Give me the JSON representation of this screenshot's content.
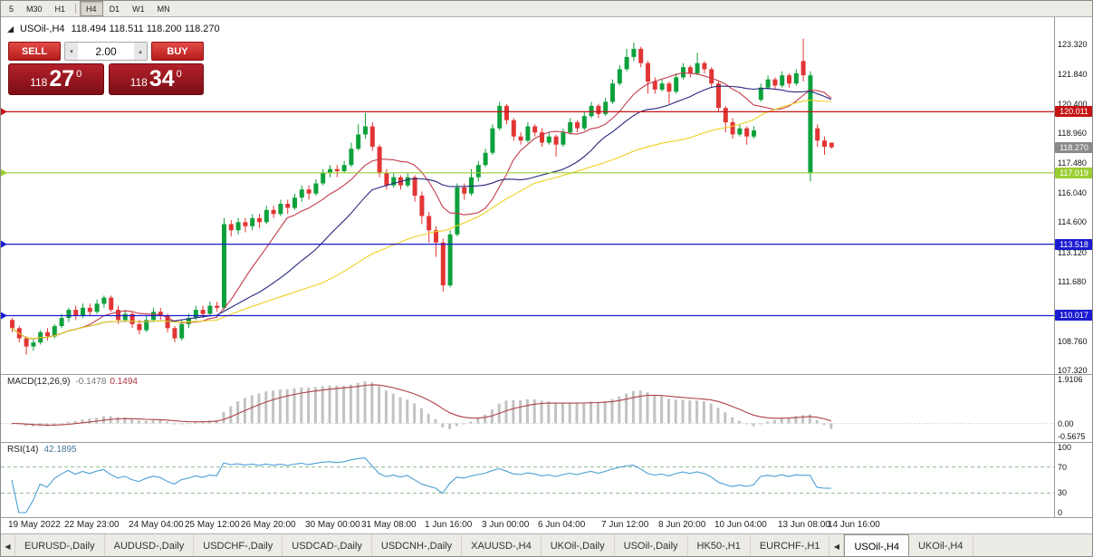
{
  "timeframe_bar": {
    "buttons": [
      "5",
      "M30",
      "H1",
      "H4",
      "D1",
      "W1",
      "MN"
    ],
    "active": "H4",
    "separator_after": "H1"
  },
  "chart": {
    "symbol": "USOil-,H4",
    "ohlc": "118.494 118.511 118.200 118.270"
  },
  "trade_panel": {
    "sell_label": "SELL",
    "buy_label": "BUY",
    "volume": "2.00",
    "sell_price": {
      "small": "118",
      "big": "27",
      "sup": "0"
    },
    "buy_price": {
      "small": "118",
      "big": "34",
      "sup": "0"
    }
  },
  "icons": {
    "tab_nav_left": "◀",
    "volume_down": "▾",
    "volume_up": "▴"
  },
  "price_axis": {
    "ticks": [
      "123.320",
      "121.840",
      "120.400",
      "118.960",
      "117.480",
      "116.040",
      "114.600",
      "113.120",
      "111.680",
      "108.760",
      "107.320"
    ],
    "badges": [
      {
        "text": "120.011",
        "price": 120.011,
        "bg": "#c41414"
      },
      {
        "text": "118.270",
        "price": 118.27,
        "bg": "#8a8a8a"
      },
      {
        "text": "117.019",
        "price": 117.019,
        "bg": "#9acd32"
      },
      {
        "text": "113.518",
        "price": 113.518,
        "bg": "#1a1ad2"
      },
      {
        "text": "110.017",
        "price": 110.017,
        "bg": "#1a1ad2"
      }
    ]
  },
  "hlines": [
    {
      "price": 120.011,
      "color": "#c41414"
    },
    {
      "price": 117.019,
      "color": "#9acd32"
    },
    {
      "price": 113.518,
      "color": "#1a1ad2"
    },
    {
      "price": 110.017,
      "color": "#1a1ad2"
    }
  ],
  "chart_data": {
    "type": "candlestick",
    "symbol": "USOil-",
    "timeframe": "H4",
    "price_range": [
      107.15,
      124.65
    ],
    "colors": {
      "up": "#0ca13c",
      "down": "#e23535"
    },
    "ma": [
      {
        "period": 10,
        "color": "#c23b4b"
      },
      {
        "period": 22,
        "color": "#26267e"
      },
      {
        "period": 45,
        "color": "#eed020"
      }
    ],
    "candles": [
      [
        109.8,
        109.9,
        109.2,
        109.4
      ],
      [
        109.4,
        109.5,
        108.7,
        108.9
      ],
      [
        108.9,
        109.0,
        108.1,
        108.5
      ],
      [
        108.5,
        108.9,
        108.3,
        108.7
      ],
      [
        108.7,
        109.3,
        108.6,
        109.2
      ],
      [
        109.2,
        109.4,
        108.8,
        109.0
      ],
      [
        109.0,
        109.6,
        108.9,
        109.5
      ],
      [
        109.5,
        110.1,
        109.4,
        109.9
      ],
      [
        109.9,
        110.4,
        109.7,
        110.3
      ],
      [
        110.3,
        110.5,
        109.8,
        110.0
      ],
      [
        110.0,
        110.6,
        109.9,
        110.4
      ],
      [
        110.4,
        110.6,
        110.0,
        110.2
      ],
      [
        110.2,
        110.8,
        110.1,
        110.6
      ],
      [
        110.6,
        111.0,
        110.4,
        110.9
      ],
      [
        110.9,
        111.0,
        110.2,
        110.3
      ],
      [
        110.3,
        110.5,
        109.6,
        109.8
      ],
      [
        109.8,
        110.3,
        109.7,
        110.1
      ],
      [
        110.1,
        110.2,
        109.4,
        109.6
      ],
      [
        109.6,
        109.8,
        109.1,
        109.3
      ],
      [
        109.3,
        110.0,
        109.2,
        109.8
      ],
      [
        109.8,
        110.4,
        109.7,
        110.2
      ],
      [
        110.2,
        110.4,
        109.8,
        110.0
      ],
      [
        110.0,
        110.1,
        109.2,
        109.4
      ],
      [
        109.4,
        109.5,
        108.7,
        108.9
      ],
      [
        108.9,
        109.8,
        108.8,
        109.6
      ],
      [
        109.6,
        110.1,
        109.4,
        109.9
      ],
      [
        109.9,
        110.5,
        109.8,
        110.3
      ],
      [
        110.3,
        110.5,
        109.9,
        110.1
      ],
      [
        110.1,
        110.7,
        110.0,
        110.5
      ],
      [
        110.5,
        110.7,
        110.2,
        110.4
      ],
      [
        110.4,
        114.8,
        110.3,
        114.5
      ],
      [
        114.5,
        114.7,
        113.9,
        114.2
      ],
      [
        114.2,
        114.8,
        114.0,
        114.6
      ],
      [
        114.6,
        114.8,
        114.1,
        114.4
      ],
      [
        114.4,
        115.0,
        114.2,
        114.8
      ],
      [
        114.8,
        115.0,
        114.3,
        114.6
      ],
      [
        114.6,
        115.4,
        114.5,
        115.2
      ],
      [
        115.2,
        115.4,
        114.8,
        115.0
      ],
      [
        115.0,
        115.7,
        114.9,
        115.5
      ],
      [
        115.5,
        115.7,
        115.0,
        115.3
      ],
      [
        115.3,
        116.0,
        115.2,
        115.8
      ],
      [
        115.8,
        116.4,
        115.6,
        116.2
      ],
      [
        116.2,
        116.4,
        115.7,
        116.0
      ],
      [
        116.0,
        116.7,
        115.9,
        116.5
      ],
      [
        116.5,
        117.2,
        116.4,
        117.0
      ],
      [
        117.0,
        117.4,
        116.8,
        117.2
      ],
      [
        117.2,
        117.4,
        116.8,
        117.1
      ],
      [
        117.1,
        117.6,
        117.0,
        117.4
      ],
      [
        117.4,
        118.5,
        117.3,
        118.2
      ],
      [
        118.2,
        119.4,
        118.1,
        118.9
      ],
      [
        118.9,
        119.95,
        118.7,
        119.3
      ],
      [
        119.3,
        119.5,
        118.1,
        118.3
      ],
      [
        118.3,
        118.4,
        116.8,
        117.0
      ],
      [
        117.0,
        117.2,
        116.2,
        116.4
      ],
      [
        116.4,
        117.0,
        116.3,
        116.8
      ],
      [
        116.8,
        116.9,
        116.2,
        116.4
      ],
      [
        116.4,
        117.0,
        116.3,
        116.8
      ],
      [
        116.8,
        116.9,
        115.6,
        115.9
      ],
      [
        115.9,
        116.1,
        114.5,
        114.9
      ],
      [
        114.9,
        115.1,
        113.6,
        114.2
      ],
      [
        114.2,
        114.4,
        112.9,
        113.6
      ],
      [
        113.6,
        113.8,
        111.2,
        111.5
      ],
      [
        111.5,
        114.2,
        111.4,
        114.0
      ],
      [
        114.0,
        116.5,
        113.9,
        116.3
      ],
      [
        116.3,
        116.5,
        115.7,
        116.0
      ],
      [
        116.0,
        117.2,
        115.9,
        116.8
      ],
      [
        116.8,
        117.6,
        116.6,
        117.4
      ],
      [
        117.4,
        118.2,
        117.3,
        118.0
      ],
      [
        118.0,
        119.4,
        117.9,
        119.2
      ],
      [
        119.2,
        120.5,
        119.1,
        120.3
      ],
      [
        120.3,
        120.4,
        119.4,
        119.6
      ],
      [
        119.6,
        119.7,
        118.6,
        118.8
      ],
      [
        118.8,
        119.0,
        118.4,
        118.6
      ],
      [
        118.6,
        119.5,
        118.5,
        119.3
      ],
      [
        119.3,
        119.4,
        118.8,
        119.0
      ],
      [
        119.0,
        119.2,
        118.3,
        118.5
      ],
      [
        118.5,
        119.0,
        118.4,
        118.8
      ],
      [
        118.8,
        118.9,
        117.8,
        118.4
      ],
      [
        118.4,
        119.2,
        118.3,
        119.0
      ],
      [
        119.0,
        119.7,
        118.9,
        119.5
      ],
      [
        119.5,
        119.6,
        119.0,
        119.2
      ],
      [
        119.2,
        120.0,
        119.1,
        119.8
      ],
      [
        119.8,
        120.5,
        119.7,
        120.3
      ],
      [
        120.3,
        120.4,
        119.7,
        119.9
      ],
      [
        119.9,
        120.7,
        119.8,
        120.5
      ],
      [
        120.5,
        121.6,
        120.4,
        121.4
      ],
      [
        121.4,
        122.3,
        121.3,
        122.1
      ],
      [
        122.1,
        123.1,
        122.0,
        122.7
      ],
      [
        122.7,
        123.4,
        122.5,
        123.1
      ],
      [
        123.1,
        123.2,
        122.2,
        122.4
      ],
      [
        122.4,
        122.5,
        120.9,
        121.5
      ],
      [
        121.5,
        121.7,
        120.9,
        121.1
      ],
      [
        121.1,
        121.6,
        121.0,
        121.4
      ],
      [
        121.4,
        121.5,
        120.4,
        121.0
      ],
      [
        121.0,
        121.9,
        120.9,
        121.7
      ],
      [
        121.7,
        122.4,
        121.6,
        122.2
      ],
      [
        122.2,
        122.3,
        121.7,
        121.9
      ],
      [
        121.9,
        122.9,
        121.8,
        122.4
      ],
      [
        122.4,
        122.5,
        121.9,
        122.1
      ],
      [
        122.1,
        122.2,
        121.2,
        121.4
      ],
      [
        121.4,
        121.5,
        120.0,
        120.2
      ],
      [
        120.2,
        120.3,
        119.0,
        119.5
      ],
      [
        119.5,
        119.7,
        118.7,
        118.9
      ],
      [
        118.9,
        119.4,
        118.8,
        119.2
      ],
      [
        119.2,
        119.3,
        118.4,
        118.8
      ],
      [
        118.8,
        119.3,
        118.7,
        119.1
      ],
      [
        120.6,
        121.4,
        120.5,
        121.2
      ],
      [
        121.2,
        121.8,
        121.1,
        121.6
      ],
      [
        121.6,
        121.7,
        121.1,
        121.3
      ],
      [
        121.3,
        122.0,
        121.2,
        121.8
      ],
      [
        121.8,
        121.9,
        121.2,
        121.4
      ],
      [
        121.4,
        122.1,
        121.3,
        121.9
      ],
      [
        122.5,
        123.6,
        121.5,
        121.8
      ],
      [
        117.0,
        122.0,
        116.6,
        121.8
      ],
      [
        119.2,
        119.4,
        118.3,
        118.6
      ],
      [
        118.6,
        118.8,
        117.9,
        118.3
      ],
      [
        118.494,
        118.511,
        118.2,
        118.27
      ]
    ]
  },
  "macd": {
    "name": "MACD(12,26,9)",
    "value_main": "-0.1478",
    "value_signal": "0.1494",
    "params": [
      12,
      26,
      9
    ],
    "range": [
      -0.8,
      2.05
    ],
    "axis": [
      {
        "text": "1.9106",
        "value": 1.9106
      },
      {
        "text": "0.00",
        "value": 0
      },
      {
        "text": "-0.5675",
        "value": -0.5675
      }
    ]
  },
  "rsi": {
    "name": "RSI(14)",
    "value": "42.1895",
    "period": 14,
    "levels": [
      70,
      30
    ],
    "axis": [
      {
        "text": "100",
        "value": 100
      },
      {
        "text": "70",
        "value": 70
      },
      {
        "text": "30",
        "value": 30
      },
      {
        "text": "0",
        "value": 0
      }
    ]
  },
  "time_axis": {
    "labels": [
      {
        "text": "19 May 2022",
        "bar": 0
      },
      {
        "text": "22 May 23:00",
        "bar": 8
      },
      {
        "text": "24 May 04:00",
        "bar": 17
      },
      {
        "text": "25 May 12:00",
        "bar": 25
      },
      {
        "text": "26 May 20:00",
        "bar": 33
      },
      {
        "text": "30 May 00:00",
        "bar": 42
      },
      {
        "text": "31 May 08:00",
        "bar": 50
      },
      {
        "text": "1 Jun 16:00",
        "bar": 59
      },
      {
        "text": "3 Jun 00:00",
        "bar": 67
      },
      {
        "text": "6 Jun 04:00",
        "bar": 75
      },
      {
        "text": "7 Jun 12:00",
        "bar": 84
      },
      {
        "text": "8 Jun 20:00",
        "bar": 92
      },
      {
        "text": "10 Jun 04:00",
        "bar": 100
      },
      {
        "text": "13 Jun 08:00",
        "bar": 109
      },
      {
        "text": "14 Jun 16:00",
        "bar": 116
      }
    ]
  },
  "tabs": {
    "items": [
      "EURUSD-,Daily",
      "AUDUSD-,Daily",
      "USDCHF-,Daily",
      "USDCAD-,Daily",
      "USDCNH-,Daily",
      "XAUUSD-,H4",
      "UKOil-,Daily",
      "USOil-,Daily",
      "HK50-,H1",
      "EURCHF-,H1",
      "USOil-,H4",
      "UKOil-,H4"
    ],
    "active_index": 10,
    "scroll_icon_before": 10
  }
}
